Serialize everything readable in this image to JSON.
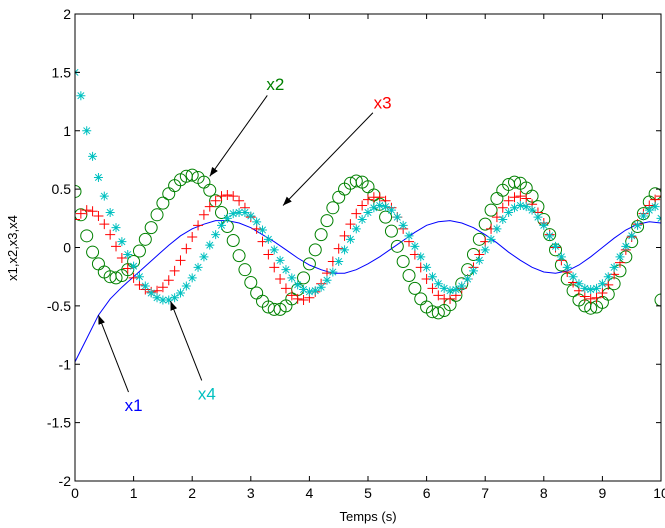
{
  "chart_data": {
    "type": "line",
    "title": "",
    "xlabel": "Temps (s)",
    "ylabel": "x1,x2,x3,x4",
    "xlim": [
      0,
      10
    ],
    "ylim": [
      -2,
      2
    ],
    "xticks": [
      "0",
      "1",
      "2",
      "3",
      "4",
      "5",
      "6",
      "7",
      "8",
      "9",
      "10"
    ],
    "yticks": [
      "-2",
      "-1.5",
      "-1",
      "-0.5",
      "0",
      "0.5",
      "1",
      "1.5",
      "2"
    ],
    "grid": false,
    "legend": null,
    "series": [
      {
        "name": "x1",
        "color": "#0000ff",
        "marker": "line",
        "x": [
          0,
          0.2,
          0.4,
          0.6,
          0.8,
          1.0,
          1.2,
          1.4,
          1.6,
          1.8,
          2.0,
          2.2,
          2.4,
          2.6,
          2.8,
          3.0,
          3.2,
          3.4,
          3.6,
          3.8,
          4.0,
          4.2,
          4.4,
          4.6,
          4.8,
          5.0,
          5.2,
          5.4,
          5.6,
          5.8,
          6.0,
          6.2,
          6.4,
          6.6,
          6.8,
          7.0,
          7.2,
          7.4,
          7.6,
          7.8,
          8.0,
          8.2,
          8.4,
          8.6,
          8.8,
          9.0,
          9.2,
          9.4,
          9.6,
          9.8,
          10.0
        ],
        "y": [
          -0.98,
          -0.78,
          -0.58,
          -0.44,
          -0.34,
          -0.25,
          -0.16,
          -0.07,
          0.02,
          0.1,
          0.16,
          0.2,
          0.23,
          0.23,
          0.21,
          0.17,
          0.11,
          0.05,
          -0.02,
          -0.09,
          -0.15,
          -0.19,
          -0.22,
          -0.22,
          -0.19,
          -0.14,
          -0.08,
          -0.01,
          0.06,
          0.13,
          0.19,
          0.22,
          0.23,
          0.21,
          0.17,
          0.11,
          0.04,
          -0.04,
          -0.11,
          -0.17,
          -0.21,
          -0.22,
          -0.2,
          -0.15,
          -0.08,
          0.0,
          0.08,
          0.15,
          0.2,
          0.22,
          0.21
        ]
      },
      {
        "name": "x2",
        "color": "#008000",
        "marker": "circle",
        "x": [
          0.0,
          0.1,
          0.2,
          0.3,
          0.4,
          0.5,
          0.6,
          0.7,
          0.8,
          0.9,
          1.0,
          1.1,
          1.2,
          1.3,
          1.4,
          1.5,
          1.6,
          1.7,
          1.8,
          1.9,
          2.0,
          2.1,
          2.2,
          2.3,
          2.4,
          2.5,
          2.6,
          2.7,
          2.8,
          2.9,
          3.0,
          3.1,
          3.2,
          3.3,
          3.4,
          3.5,
          3.6,
          3.7,
          3.8,
          3.9,
          4.0,
          4.1,
          4.2,
          4.3,
          4.4,
          4.5,
          4.6,
          4.7,
          4.8,
          4.9,
          5.0,
          5.1,
          5.2,
          5.3,
          5.4,
          5.5,
          5.6,
          5.7,
          5.8,
          5.9,
          6.0,
          6.1,
          6.2,
          6.3,
          6.4,
          6.5,
          6.6,
          6.7,
          6.8,
          6.9,
          7.0,
          7.1,
          7.2,
          7.3,
          7.4,
          7.5,
          7.6,
          7.7,
          7.8,
          7.9,
          8.0,
          8.1,
          8.2,
          8.3,
          8.4,
          8.5,
          8.6,
          8.7,
          8.8,
          8.9,
          9.0,
          9.1,
          9.2,
          9.3,
          9.4,
          9.5,
          9.6,
          9.7,
          9.8,
          9.9,
          10.0
        ],
        "y": [
          0.48,
          0.28,
          0.1,
          -0.04,
          -0.14,
          -0.21,
          -0.25,
          -0.26,
          -0.24,
          -0.19,
          -0.12,
          -0.03,
          0.07,
          0.17,
          0.28,
          0.38,
          0.46,
          0.53,
          0.58,
          0.61,
          0.62,
          0.6,
          0.56,
          0.49,
          0.4,
          0.3,
          0.18,
          0.06,
          -0.07,
          -0.19,
          -0.3,
          -0.39,
          -0.46,
          -0.51,
          -0.53,
          -0.53,
          -0.5,
          -0.44,
          -0.36,
          -0.26,
          -0.14,
          -0.02,
          0.11,
          0.23,
          0.34,
          0.43,
          0.5,
          0.55,
          0.57,
          0.56,
          0.52,
          0.45,
          0.37,
          0.26,
          0.14,
          0.01,
          -0.12,
          -0.24,
          -0.35,
          -0.44,
          -0.51,
          -0.55,
          -0.56,
          -0.54,
          -0.49,
          -0.41,
          -0.31,
          -0.19,
          -0.06,
          0.07,
          0.2,
          0.32,
          0.42,
          0.49,
          0.54,
          0.56,
          0.55,
          0.51,
          0.44,
          0.35,
          0.24,
          0.11,
          -0.02,
          -0.15,
          -0.27,
          -0.37,
          -0.45,
          -0.5,
          -0.52,
          -0.51,
          -0.47,
          -0.4,
          -0.31,
          -0.2,
          -0.08,
          0.05,
          0.18,
          0.29,
          0.39,
          0.46,
          -0.45
        ]
      },
      {
        "name": "x3",
        "color": "#ff0000",
        "marker": "plus",
        "x": [
          0.0,
          0.1,
          0.2,
          0.3,
          0.4,
          0.5,
          0.6,
          0.7,
          0.8,
          0.9,
          1.0,
          1.1,
          1.2,
          1.3,
          1.4,
          1.5,
          1.6,
          1.7,
          1.8,
          1.9,
          2.0,
          2.1,
          2.2,
          2.3,
          2.4,
          2.5,
          2.6,
          2.7,
          2.8,
          2.9,
          3.0,
          3.1,
          3.2,
          3.3,
          3.4,
          3.5,
          3.6,
          3.7,
          3.8,
          3.9,
          4.0,
          4.1,
          4.2,
          4.3,
          4.4,
          4.5,
          4.6,
          4.7,
          4.8,
          4.9,
          5.0,
          5.1,
          5.2,
          5.3,
          5.4,
          5.5,
          5.6,
          5.7,
          5.8,
          5.9,
          6.0,
          6.1,
          6.2,
          6.3,
          6.4,
          6.5,
          6.6,
          6.7,
          6.8,
          6.9,
          7.0,
          7.1,
          7.2,
          7.3,
          7.4,
          7.5,
          7.6,
          7.7,
          7.8,
          7.9,
          8.0,
          8.1,
          8.2,
          8.3,
          8.4,
          8.5,
          8.6,
          8.7,
          8.8,
          8.9,
          9.0,
          9.1,
          9.2,
          9.3,
          9.4,
          9.5,
          9.6,
          9.7,
          9.8,
          9.9,
          10.0
        ],
        "y": [
          0.24,
          0.29,
          0.32,
          0.31,
          0.27,
          0.2,
          0.11,
          0.01,
          -0.09,
          -0.18,
          -0.26,
          -0.32,
          -0.36,
          -0.38,
          -0.37,
          -0.34,
          -0.28,
          -0.2,
          -0.11,
          -0.01,
          0.09,
          0.19,
          0.28,
          0.35,
          0.4,
          0.44,
          0.45,
          0.44,
          0.4,
          0.34,
          0.26,
          0.16,
          0.05,
          -0.06,
          -0.17,
          -0.27,
          -0.35,
          -0.41,
          -0.44,
          -0.45,
          -0.43,
          -0.38,
          -0.31,
          -0.22,
          -0.12,
          -0.01,
          0.1,
          0.2,
          0.29,
          0.36,
          0.41,
          0.43,
          0.43,
          0.4,
          0.34,
          0.26,
          0.16,
          0.05,
          -0.06,
          -0.17,
          -0.27,
          -0.35,
          -0.41,
          -0.44,
          -0.44,
          -0.41,
          -0.35,
          -0.27,
          -0.17,
          -0.06,
          0.05,
          0.16,
          0.26,
          0.34,
          0.4,
          0.43,
          0.44,
          0.42,
          0.37,
          0.3,
          0.21,
          0.11,
          0.0,
          -0.11,
          -0.21,
          -0.3,
          -0.37,
          -0.42,
          -0.44,
          -0.43,
          -0.39,
          -0.32,
          -0.23,
          -0.13,
          -0.02,
          0.09,
          0.2,
          0.29,
          0.36,
          0.41,
          0.44
        ]
      },
      {
        "name": "x4",
        "color": "#00c0c0",
        "marker": "star",
        "x": [
          0.0,
          0.1,
          0.2,
          0.3,
          0.4,
          0.5,
          0.6,
          0.7,
          0.8,
          0.9,
          1.0,
          1.1,
          1.2,
          1.3,
          1.4,
          1.5,
          1.6,
          1.7,
          1.8,
          1.9,
          2.0,
          2.1,
          2.2,
          2.3,
          2.4,
          2.5,
          2.6,
          2.7,
          2.8,
          2.9,
          3.0,
          3.1,
          3.2,
          3.3,
          3.4,
          3.5,
          3.6,
          3.7,
          3.8,
          3.9,
          4.0,
          4.1,
          4.2,
          4.3,
          4.4,
          4.5,
          4.6,
          4.7,
          4.8,
          4.9,
          5.0,
          5.1,
          5.2,
          5.3,
          5.4,
          5.5,
          5.6,
          5.7,
          5.8,
          5.9,
          6.0,
          6.1,
          6.2,
          6.3,
          6.4,
          6.5,
          6.6,
          6.7,
          6.8,
          6.9,
          7.0,
          7.1,
          7.2,
          7.3,
          7.4,
          7.5,
          7.6,
          7.7,
          7.8,
          7.9,
          8.0,
          8.1,
          8.2,
          8.3,
          8.4,
          8.5,
          8.6,
          8.7,
          8.8,
          8.9,
          9.0,
          9.1,
          9.2,
          9.3,
          9.4,
          9.5,
          9.6,
          9.7,
          9.8,
          9.9,
          10.0
        ],
        "y": [
          1.5,
          1.3,
          1.0,
          0.78,
          0.6,
          0.44,
          0.3,
          0.17,
          0.05,
          -0.06,
          -0.16,
          -0.25,
          -0.33,
          -0.39,
          -0.43,
          -0.45,
          -0.45,
          -0.43,
          -0.39,
          -0.33,
          -0.26,
          -0.17,
          -0.08,
          0.02,
          0.11,
          0.19,
          0.25,
          0.29,
          0.3,
          0.3,
          0.27,
          0.22,
          0.15,
          0.07,
          -0.02,
          -0.11,
          -0.19,
          -0.26,
          -0.32,
          -0.36,
          -0.38,
          -0.37,
          -0.34,
          -0.28,
          -0.21,
          -0.12,
          -0.02,
          0.07,
          0.16,
          0.24,
          0.3,
          0.34,
          0.36,
          0.35,
          0.32,
          0.26,
          0.19,
          0.1,
          0.01,
          -0.08,
          -0.17,
          -0.25,
          -0.31,
          -0.35,
          -0.37,
          -0.36,
          -0.33,
          -0.27,
          -0.2,
          -0.11,
          -0.02,
          0.07,
          0.16,
          0.24,
          0.3,
          0.34,
          0.36,
          0.35,
          0.32,
          0.26,
          0.19,
          0.1,
          0.01,
          -0.08,
          -0.17,
          -0.25,
          -0.31,
          -0.35,
          -0.36,
          -0.35,
          -0.31,
          -0.25,
          -0.17,
          -0.08,
          0.01,
          0.1,
          0.19,
          0.27,
          0.32,
          0.35,
          0.25
        ]
      }
    ],
    "annotations": [
      {
        "text": "x1",
        "color": "#0000ff",
        "label_at": [
          1.0,
          -1.35
        ],
        "arrow_to": [
          0.4,
          -0.58
        ]
      },
      {
        "text": "x2",
        "color": "#008000",
        "label_at": [
          3.42,
          1.4
        ],
        "arrow_to": [
          2.3,
          0.61
        ]
      },
      {
        "text": "x3",
        "color": "#ff0000",
        "label_at": [
          5.25,
          1.24
        ],
        "arrow_to": [
          3.55,
          0.36
        ]
      },
      {
        "text": "x4",
        "color": "#00c0c0",
        "label_at": [
          2.25,
          -1.25
        ],
        "arrow_to": [
          1.63,
          -0.46
        ]
      }
    ]
  }
}
